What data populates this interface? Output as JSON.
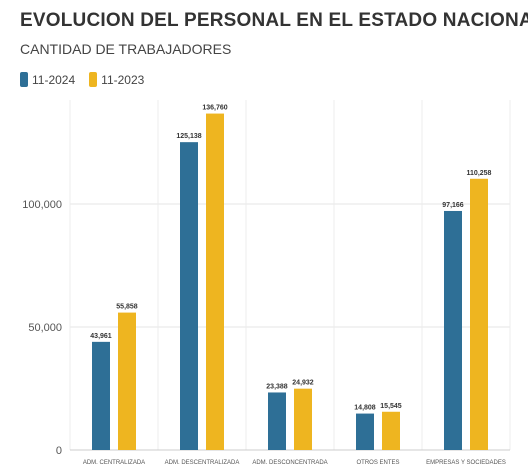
{
  "chart_data": {
    "type": "bar",
    "title": "EVOLUCION DEL PERSONAL EN EL ESTADO NACIONAL",
    "subtitle": "CANTIDAD DE TRABAJADORES",
    "categories": [
      "ADM. CENTRALIZADA",
      "ADM. DESCENTRALIZADA",
      "ADM. DESCONCENTRADA",
      "OTROS ENTES",
      "EMPRESAS Y SOCIEDADES"
    ],
    "series": [
      {
        "name": "11-2024",
        "color": "#2E6F96",
        "values": [
          43961,
          125138,
          23388,
          14808,
          97166
        ],
        "labels": [
          "43,961",
          "125,138",
          "23,388",
          "14,808",
          "97,166"
        ]
      },
      {
        "name": "11-2023",
        "color": "#EEB520",
        "values": [
          55858,
          136760,
          24932,
          15545,
          110258
        ],
        "labels": [
          "55,858",
          "136,760",
          "24,932",
          "15,545",
          "110,258"
        ]
      }
    ],
    "yticks": [
      0,
      50000,
      100000
    ],
    "ytick_labels": [
      "0",
      "50,000",
      "100,000"
    ],
    "ylim": [
      0,
      140000
    ],
    "xlabel": "",
    "ylabel": "",
    "grid": true,
    "legend_position": "top-left"
  }
}
